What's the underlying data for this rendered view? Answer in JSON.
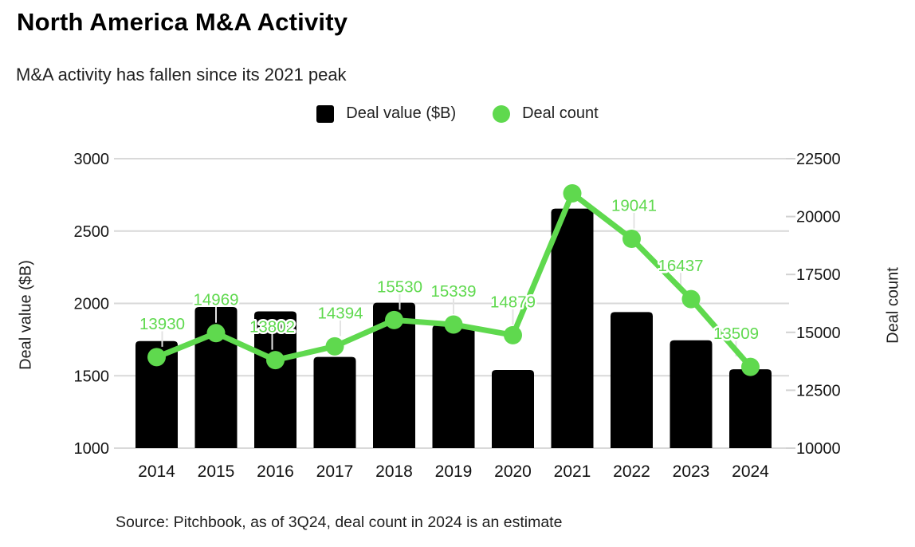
{
  "chart_data": {
    "type": "combo-bar-line",
    "title": "North America M&A Activity",
    "subtitle": "M&A activity has fallen since its 2021 peak",
    "categories": [
      "2014",
      "2015",
      "2016",
      "2017",
      "2018",
      "2019",
      "2020",
      "2021",
      "2022",
      "2023",
      "2024"
    ],
    "series": [
      {
        "name": "Deal value ($B)",
        "type": "bar",
        "axis": "left",
        "color": "#000000",
        "values": [
          1740,
          1975,
          1945,
          1630,
          2005,
          1850,
          1540,
          2655,
          1940,
          1745,
          1545
        ]
      },
      {
        "name": "Deal count",
        "type": "line",
        "axis": "right",
        "color": "#5FD94E",
        "values": [
          13930,
          14969,
          13802,
          14394,
          15530,
          15339,
          14879,
          21000,
          19041,
          16437,
          13509
        ],
        "point_labels": [
          "13930",
          "14969",
          "13802",
          "14394",
          "15530",
          "15339",
          "14879",
          "",
          "19041",
          "16437",
          "13509"
        ]
      }
    ],
    "left_axis": {
      "title": "Deal value ($B)",
      "min": 1000,
      "max": 3000,
      "ticks": [
        3000,
        2500,
        2000,
        1500,
        1000
      ]
    },
    "right_axis": {
      "title": "Deal count",
      "min": 10000,
      "max": 22500,
      "ticks": [
        22500,
        20000,
        17500,
        15000,
        12500,
        10000
      ]
    },
    "grid": "horizontal",
    "legend_position": "top-center",
    "source": "Source: Pitchbook, as of 3Q24, deal count in 2024 is an estimate"
  }
}
